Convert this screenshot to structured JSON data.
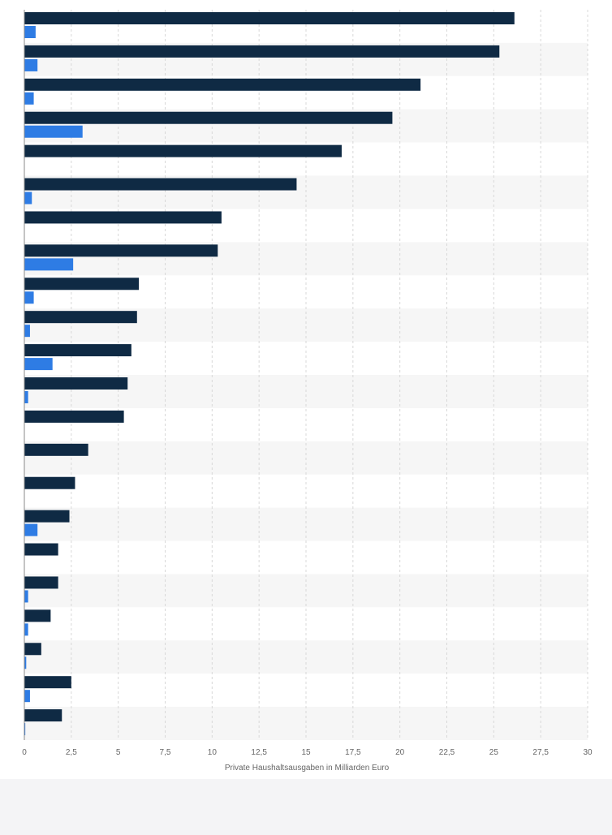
{
  "chart_data": {
    "type": "bar",
    "orientation": "horizontal",
    "categories": [
      "",
      "",
      "",
      "",
      "",
      "",
      "",
      "",
      "",
      "",
      "",
      "",
      "",
      "",
      "",
      "",
      "",
      "",
      "",
      "",
      "",
      ""
    ],
    "series": [
      {
        "color": "#0f2a44",
        "values": [
          26.1,
          25.3,
          21.1,
          19.6,
          16.9,
          14.5,
          10.5,
          10.3,
          6.1,
          6.0,
          5.7,
          5.5,
          5.3,
          3.4,
          2.7,
          2.4,
          1.8,
          1.8,
          1.4,
          0.9,
          2.5,
          2.0
        ]
      },
      {
        "color": "#2e7ce4",
        "values": [
          0.6,
          0.7,
          0.5,
          3.1,
          null,
          0.4,
          null,
          2.6,
          0.5,
          0.3,
          1.5,
          0.2,
          null,
          null,
          null,
          0.7,
          null,
          0.2,
          0.2,
          0.1,
          0.3,
          0.05
        ]
      }
    ],
    "xlabel": "Private Haushaltsausgaben in Milliarden Euro",
    "ylabel": "",
    "xlim": [
      0,
      30
    ],
    "xticks": [
      0,
      2.5,
      5,
      7.5,
      10,
      12.5,
      15,
      17.5,
      20,
      22.5,
      25,
      27.5,
      30
    ],
    "tick_labels": [
      "0",
      "2,5",
      "5",
      "7,5",
      "10",
      "12,5",
      "15",
      "17,5",
      "20",
      "22,5",
      "25",
      "27,5",
      "30"
    ],
    "grid": true,
    "legend": "none"
  }
}
